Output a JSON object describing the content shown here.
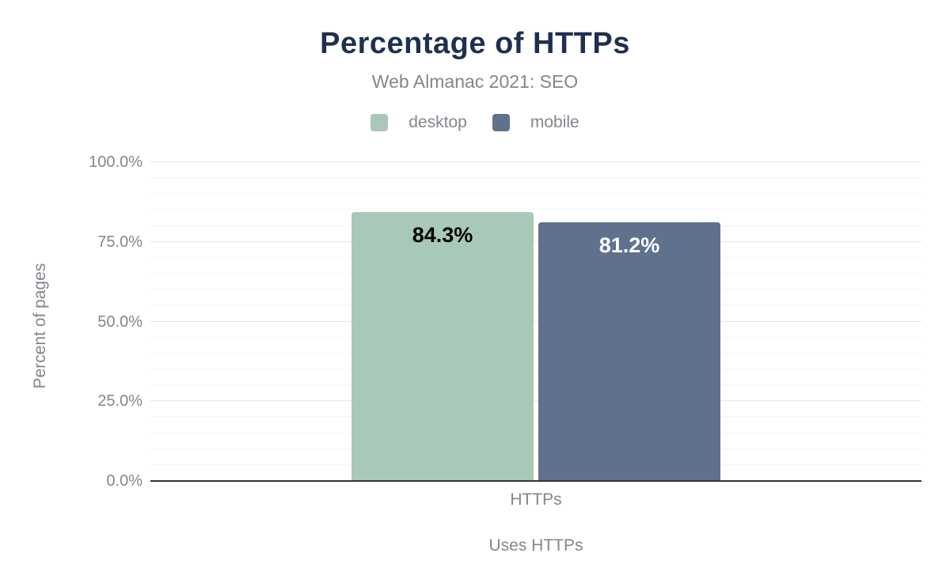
{
  "chart_data": {
    "type": "bar",
    "title": "Percentage of HTTPs",
    "subtitle": "Web Almanac 2021: SEO",
    "categories": [
      "HTTPs"
    ],
    "series": [
      {
        "name": "desktop",
        "values": [
          84.3
        ],
        "data_labels": [
          "84.3%"
        ],
        "color": "#a8c9b8",
        "label_color": "#000000"
      },
      {
        "name": "mobile",
        "values": [
          81.2
        ],
        "data_labels": [
          "81.2%"
        ],
        "color": "#60718e",
        "label_color": "#ffffff"
      }
    ],
    "xlabel": "Uses HTTPs",
    "ylabel": "Percent of pages",
    "ylim": [
      0,
      100
    ],
    "yticks": [
      {
        "value": 0,
        "label": "0.0%"
      },
      {
        "value": 25,
        "label": "25.0%"
      },
      {
        "value": 50,
        "label": "50.0%"
      },
      {
        "value": 75,
        "label": "75.0%"
      },
      {
        "value": 100,
        "label": "100.0%"
      }
    ],
    "grid": {
      "on": true,
      "minor_step": 5,
      "major_step": 25
    },
    "legend_position": "top",
    "colors": {
      "title": "#1e3050",
      "muted_text": "#82868d",
      "axis_line": "#333333",
      "major_grid": "#e6e6e6",
      "minor_grid": "#f5f5f5",
      "background": "#ffffff"
    }
  }
}
